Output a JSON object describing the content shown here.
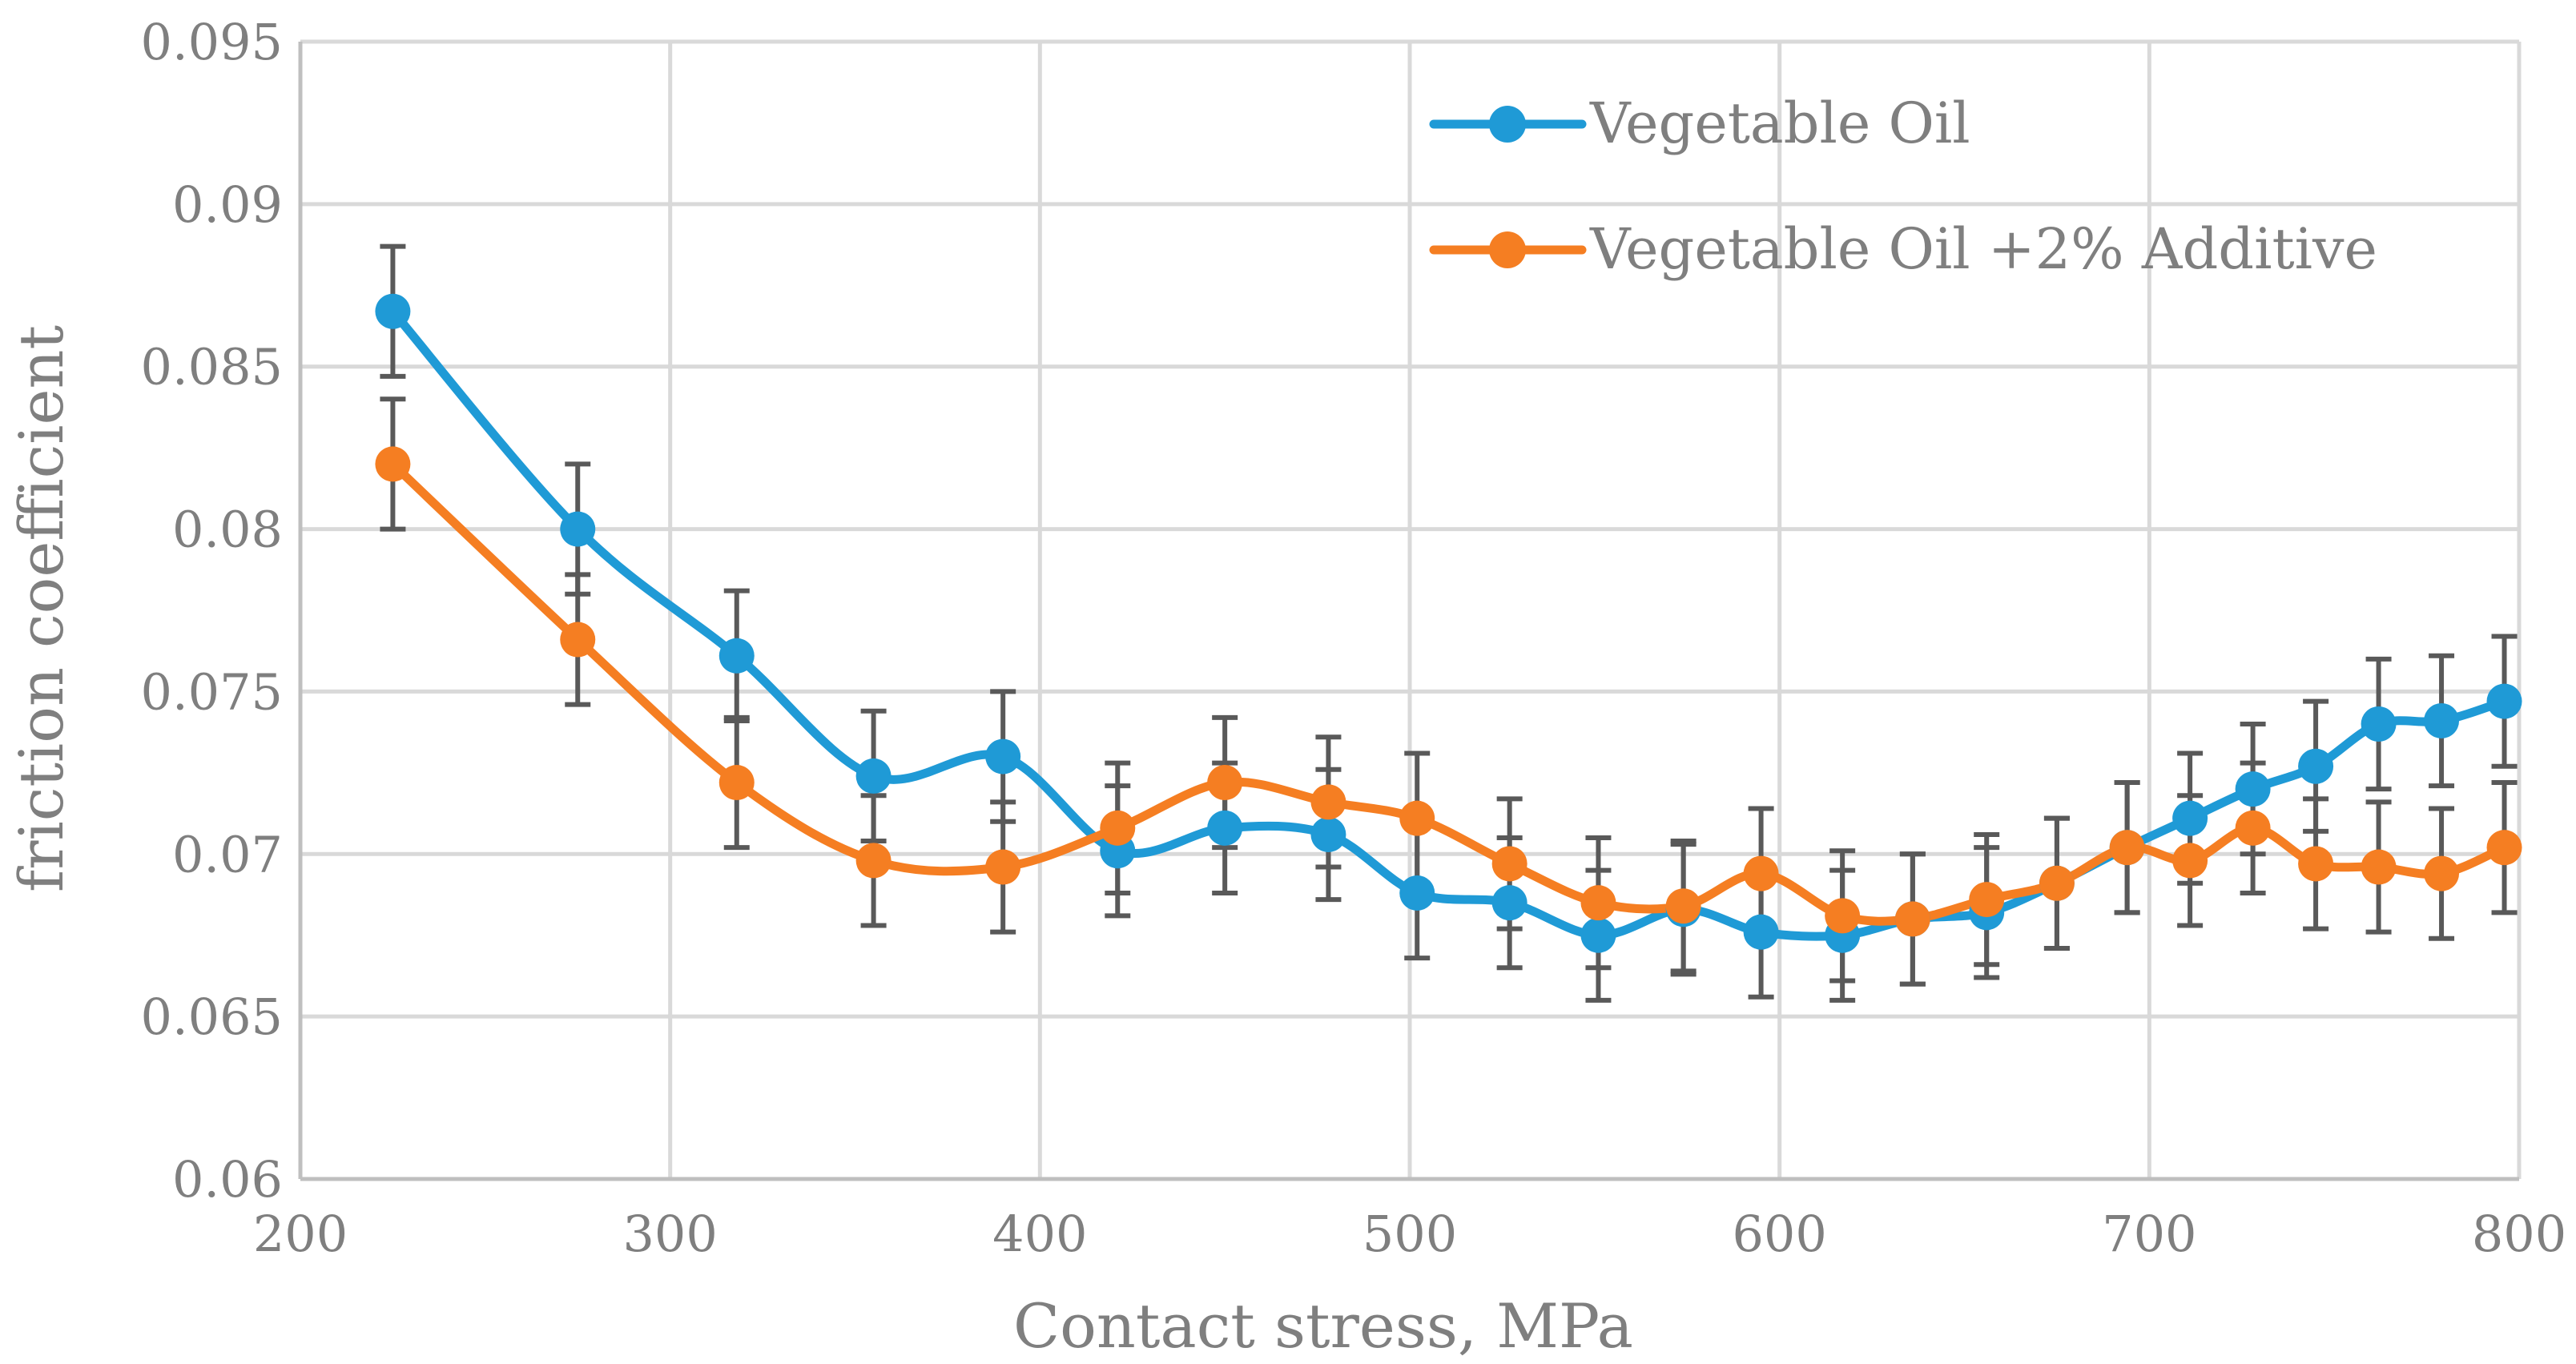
{
  "chart_data": {
    "type": "line",
    "title": "",
    "xlabel": "Contact stress, MPa",
    "ylabel": "friction coefficient",
    "xlim": [
      200,
      800
    ],
    "ylim": [
      0.06,
      0.095
    ],
    "x_ticks": [
      200,
      300,
      400,
      500,
      600,
      700,
      800
    ],
    "x_tick_labels": [
      "200",
      "300",
      "400",
      "500",
      "600",
      "700",
      "800"
    ],
    "y_ticks": [
      0.06,
      0.065,
      0.07,
      0.075,
      0.08,
      0.085,
      0.09,
      0.095
    ],
    "y_tick_labels": [
      "0.06",
      "0.065",
      "0.07",
      "0.075",
      "0.08",
      "0.085",
      "0.09",
      "0.095"
    ],
    "grid": true,
    "smooth": true,
    "legend_position": "top-right",
    "series": [
      {
        "name": "Vegetable Oil",
        "color": "#1f9ad6",
        "x": [
          225,
          275,
          318,
          355,
          390,
          421,
          450,
          478,
          502,
          527,
          551,
          574,
          595,
          617,
          636,
          656,
          675,
          694,
          711,
          728,
          745,
          762,
          779,
          796
        ],
        "y": [
          0.0867,
          0.08,
          0.0761,
          0.0724,
          0.073,
          0.0701,
          0.0708,
          0.0706,
          0.0688,
          0.0685,
          0.0675,
          0.0683,
          0.0676,
          0.0675,
          0.068,
          0.0682,
          0.0691,
          0.0702,
          0.0711,
          0.072,
          0.0727,
          0.074,
          0.0741,
          0.0747
        ],
        "error": 0.002
      },
      {
        "name": "Vegetable Oil +2% Additive",
        "color": "#f57e22",
        "x": [
          225,
          275,
          318,
          355,
          390,
          421,
          450,
          478,
          502,
          527,
          551,
          574,
          595,
          617,
          636,
          656,
          675,
          694,
          711,
          728,
          745,
          762,
          779,
          796
        ],
        "y": [
          0.082,
          0.0766,
          0.0722,
          0.0698,
          0.0696,
          0.0708,
          0.0722,
          0.0716,
          0.0711,
          0.0697,
          0.0685,
          0.0684,
          0.0694,
          0.0681,
          0.068,
          0.0686,
          0.0691,
          0.0702,
          0.0698,
          0.0708,
          0.0697,
          0.0696,
          0.0694,
          0.0702
        ],
        "error": 0.002
      }
    ]
  }
}
